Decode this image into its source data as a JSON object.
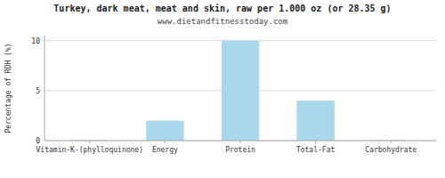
{
  "chart_data": {
    "type": "bar",
    "title": "Turkey, dark meat, meat and skin, raw per 1.000 oz (or 28.35 g)",
    "subtitle": "www.dietandfitnesstoday.com",
    "categories": [
      "Vitamin-K-(phylloquinone)",
      "Energy",
      "Protein",
      "Total-Fat",
      "Carbohydrate"
    ],
    "values": [
      0.05,
      2.0,
      10.0,
      4.0,
      0.05
    ],
    "color": "#a8d8ea",
    "ylabel": "Percentage of RDH (%)",
    "ylim": [
      0,
      10.5
    ],
    "yticks": [
      0,
      5,
      10
    ],
    "grid": true
  }
}
